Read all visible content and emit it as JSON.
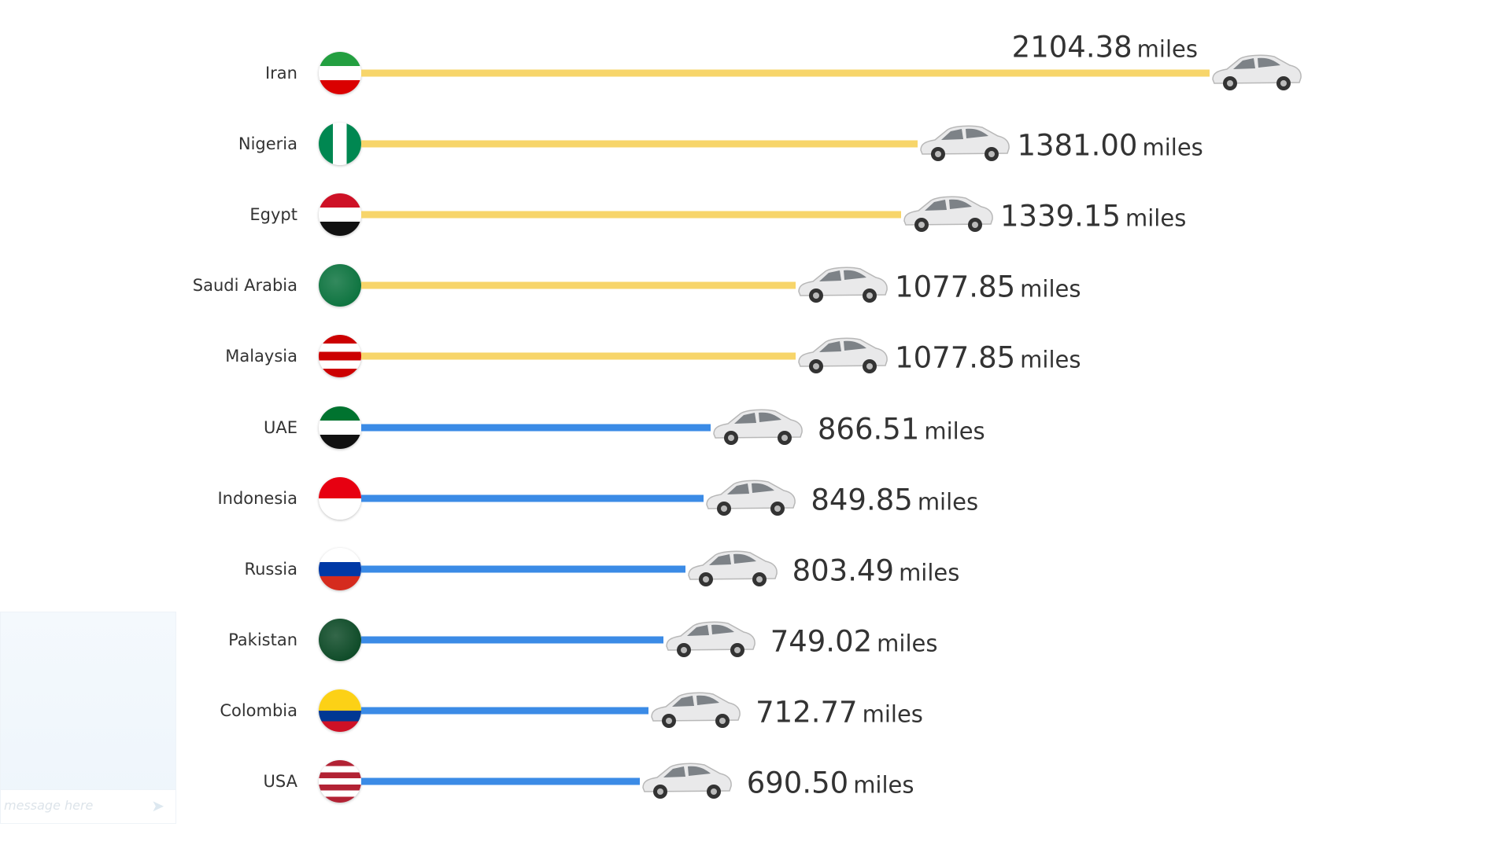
{
  "chart_data": {
    "type": "bar",
    "orientation": "horizontal",
    "title": "",
    "unit": "miles",
    "categories": [
      "Iran",
      "Nigeria",
      "Egypt",
      "Saudi Arabia",
      "Malaysia",
      "UAE",
      "Indonesia",
      "Russia",
      "Pakistan",
      "Colombia",
      "USA"
    ],
    "values": [
      2104.38,
      1381.0,
      1339.15,
      1077.85,
      1077.85,
      866.51,
      849.85,
      803.49,
      749.02,
      712.77,
      690.5
    ],
    "value_labels": [
      "2104.38",
      "1381.00",
      "1339.15",
      "1077.85",
      "1077.85",
      "866.51",
      "849.85",
      "803.49",
      "749.02",
      "712.77",
      "690.50"
    ],
    "bar_colors": [
      "#f7d56a",
      "#f7d56a",
      "#f7d56a",
      "#f7d56a",
      "#f7d56a",
      "#3b8be6",
      "#3b8be6",
      "#3b8be6",
      "#3b8be6",
      "#3b8be6",
      "#3b8be6"
    ],
    "xlim": [
      0,
      2104.38
    ],
    "grid": false,
    "legend": "none"
  },
  "chat": {
    "placeholder": "message here"
  }
}
